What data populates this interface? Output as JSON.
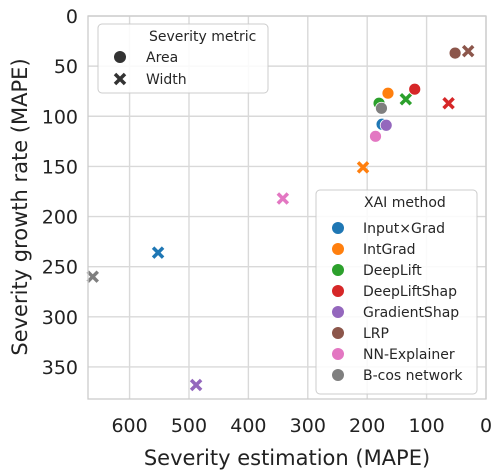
{
  "chart_data": {
    "type": "scatter",
    "xlabel": "Severity estimation (MAPE)",
    "ylabel": "Severity growth rate (MAPE)",
    "xlim": [
      670,
      0
    ],
    "ylim": [
      382,
      0
    ],
    "x_ticks": [
      600,
      500,
      400,
      300,
      200,
      100,
      0
    ],
    "y_ticks": [
      0,
      50,
      100,
      150,
      200,
      250,
      300,
      350
    ],
    "x_inverted": true,
    "y_inverted": true,
    "grid": true,
    "legends": {
      "marker": {
        "title": "Severity metric",
        "placement": "top-left",
        "entries": [
          {
            "label": "Area",
            "marker": "circle"
          },
          {
            "label": "Width",
            "marker": "x"
          }
        ]
      },
      "color": {
        "title": "XAI method",
        "placement": "bottom-right",
        "entries": [
          {
            "label": "Input×Grad",
            "color": "#1f77b4"
          },
          {
            "label": "IntGrad",
            "color": "#ff7f0e"
          },
          {
            "label": "DeepLift",
            "color": "#2ca02c"
          },
          {
            "label": "DeepLiftShap",
            "color": "#d62728"
          },
          {
            "label": "GradientShap",
            "color": "#9467bd"
          },
          {
            "label": "LRP",
            "color": "#8c564b"
          },
          {
            "label": "NN-Explainer",
            "color": "#e377c2"
          },
          {
            "label": "B-cos network",
            "color": "#7f7f7f"
          }
        ]
      }
    },
    "points": [
      {
        "method": "Input×Grad",
        "metric": "Area",
        "x": 175,
        "y": 108
      },
      {
        "method": "Input×Grad",
        "metric": "Width",
        "x": 552,
        "y": 236
      },
      {
        "method": "IntGrad",
        "metric": "Area",
        "x": 165,
        "y": 77
      },
      {
        "method": "IntGrad",
        "metric": "Width",
        "x": 207,
        "y": 151
      },
      {
        "method": "DeepLift",
        "metric": "Area",
        "x": 180,
        "y": 87
      },
      {
        "method": "DeepLift",
        "metric": "Width",
        "x": 135,
        "y": 83
      },
      {
        "method": "DeepLiftShap",
        "metric": "Area",
        "x": 120,
        "y": 73
      },
      {
        "method": "DeepLiftShap",
        "metric": "Width",
        "x": 63,
        "y": 87
      },
      {
        "method": "GradientShap",
        "metric": "Area",
        "x": 168,
        "y": 109
      },
      {
        "method": "GradientShap",
        "metric": "Width",
        "x": 488,
        "y": 368
      },
      {
        "method": "LRP",
        "metric": "Area",
        "x": 52,
        "y": 37
      },
      {
        "method": "LRP",
        "metric": "Width",
        "x": 30,
        "y": 35
      },
      {
        "method": "NN-Explainer",
        "metric": "Area",
        "x": 186,
        "y": 120
      },
      {
        "method": "NN-Explainer",
        "metric": "Width",
        "x": 342,
        "y": 182
      },
      {
        "method": "B-cos network",
        "metric": "Area",
        "x": 176,
        "y": 92
      },
      {
        "method": "B-cos network",
        "metric": "Width",
        "x": 662,
        "y": 260
      }
    ]
  }
}
